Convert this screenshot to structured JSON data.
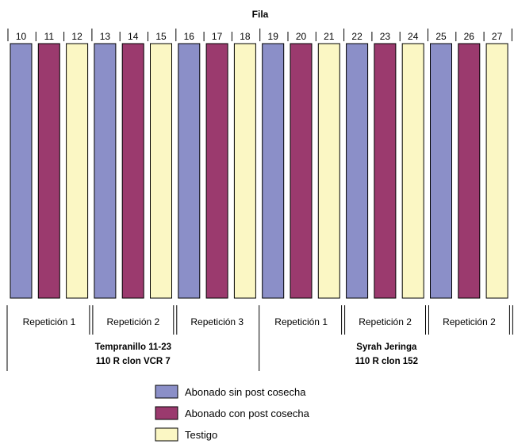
{
  "title": "Fila",
  "colors": {
    "abonado_sin": "#8b8fc8",
    "abonado_con": "#9b3a6e",
    "testigo": "#fbf7c4",
    "outline": "#000000"
  },
  "rows": [
    {
      "number": "10",
      "treatment": "abonado_sin"
    },
    {
      "number": "11",
      "treatment": "abonado_con"
    },
    {
      "number": "12",
      "treatment": "testigo"
    },
    {
      "number": "13",
      "treatment": "abonado_sin"
    },
    {
      "number": "14",
      "treatment": "abonado_con"
    },
    {
      "number": "15",
      "treatment": "testigo"
    },
    {
      "number": "16",
      "treatment": "abonado_sin"
    },
    {
      "number": "17",
      "treatment": "abonado_con"
    },
    {
      "number": "18",
      "treatment": "testigo"
    },
    {
      "number": "19",
      "treatment": "abonado_sin"
    },
    {
      "number": "20",
      "treatment": "abonado_con"
    },
    {
      "number": "21",
      "treatment": "testigo"
    },
    {
      "number": "22",
      "treatment": "abonado_sin"
    },
    {
      "number": "23",
      "treatment": "abonado_con"
    },
    {
      "number": "24",
      "treatment": "testigo"
    },
    {
      "number": "25",
      "treatment": "abonado_sin"
    },
    {
      "number": "26",
      "treatment": "abonado_con"
    },
    {
      "number": "27",
      "treatment": "testigo"
    }
  ],
  "repetitions": [
    "Repetición 1",
    "Repetición 2",
    "Repetición 3",
    "Repetición 1",
    "Repetición 2",
    "Repetición 2"
  ],
  "groups": [
    {
      "line1": "Tempranillo 11-23",
      "line2": "110 R clon VCR 7"
    },
    {
      "line1": "Syrah Jeringa",
      "line2": "110 R clon 152"
    }
  ],
  "legend": [
    {
      "label": "Abonado sin post cosecha",
      "treatment": "abonado_sin"
    },
    {
      "label": "Abonado con post cosecha",
      "treatment": "abonado_con"
    },
    {
      "label": "Testigo",
      "treatment": "testigo"
    }
  ]
}
